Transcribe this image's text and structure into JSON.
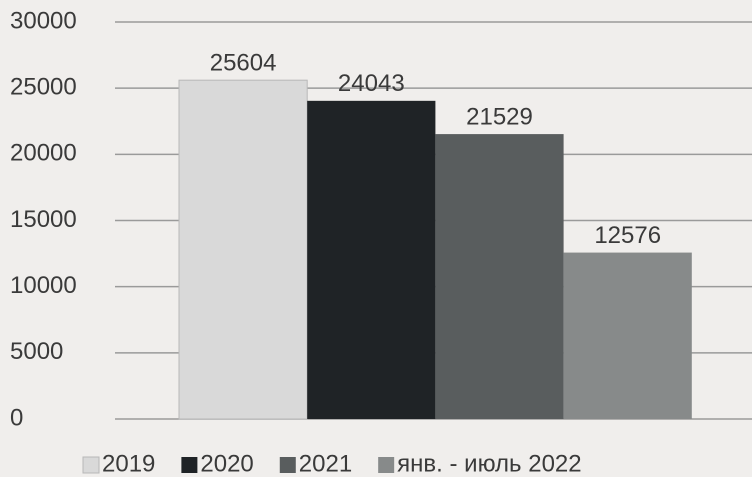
{
  "chart_data": {
    "type": "bar",
    "categories": [
      null
    ],
    "series": [
      {
        "name": "2019",
        "color": "#d9d9d9",
        "values": [
          25604
        ]
      },
      {
        "name": "2020",
        "color": "#1f2326",
        "values": [
          24043
        ]
      },
      {
        "name": "2021",
        "color": "#595d5e",
        "values": [
          21529
        ]
      },
      {
        "name": "янв. - июль 2022",
        "color": "#878a8a",
        "values": [
          12576
        ]
      }
    ],
    "ylim": [
      0,
      30000
    ],
    "yticks": [
      0,
      5000,
      10000,
      15000,
      20000,
      25000,
      30000
    ],
    "grid": true,
    "legend": "bottom"
  }
}
